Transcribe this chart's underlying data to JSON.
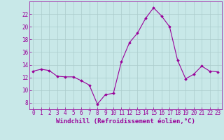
{
  "x": [
    0,
    1,
    2,
    3,
    4,
    5,
    6,
    7,
    8,
    9,
    10,
    11,
    12,
    13,
    14,
    15,
    16,
    17,
    18,
    19,
    20,
    21,
    22,
    23
  ],
  "y": [
    13.0,
    13.3,
    13.1,
    12.2,
    12.1,
    12.1,
    11.5,
    10.8,
    7.8,
    9.3,
    9.5,
    14.5,
    17.5,
    19.0,
    21.3,
    23.0,
    21.7,
    20.0,
    14.7,
    11.8,
    12.5,
    13.8,
    13.0,
    12.9
  ],
  "line_color": "#990099",
  "marker": "D",
  "marker_size": 1.8,
  "bg_color": "#c8e8e8",
  "grid_color": "#aacccc",
  "xlabel": "Windchill (Refroidissement éolien,°C)",
  "xlabel_color": "#990099",
  "xlabel_fontsize": 6.5,
  "tick_color": "#990099",
  "tick_fontsize": 5.5,
  "ylim": [
    7,
    24
  ],
  "yticks": [
    8,
    10,
    12,
    14,
    16,
    18,
    20,
    22
  ],
  "xlim": [
    -0.5,
    23.5
  ],
  "xticks": [
    0,
    1,
    2,
    3,
    4,
    5,
    6,
    7,
    8,
    9,
    10,
    11,
    12,
    13,
    14,
    15,
    16,
    17,
    18,
    19,
    20,
    21,
    22,
    23
  ],
  "line_width": 0.8
}
